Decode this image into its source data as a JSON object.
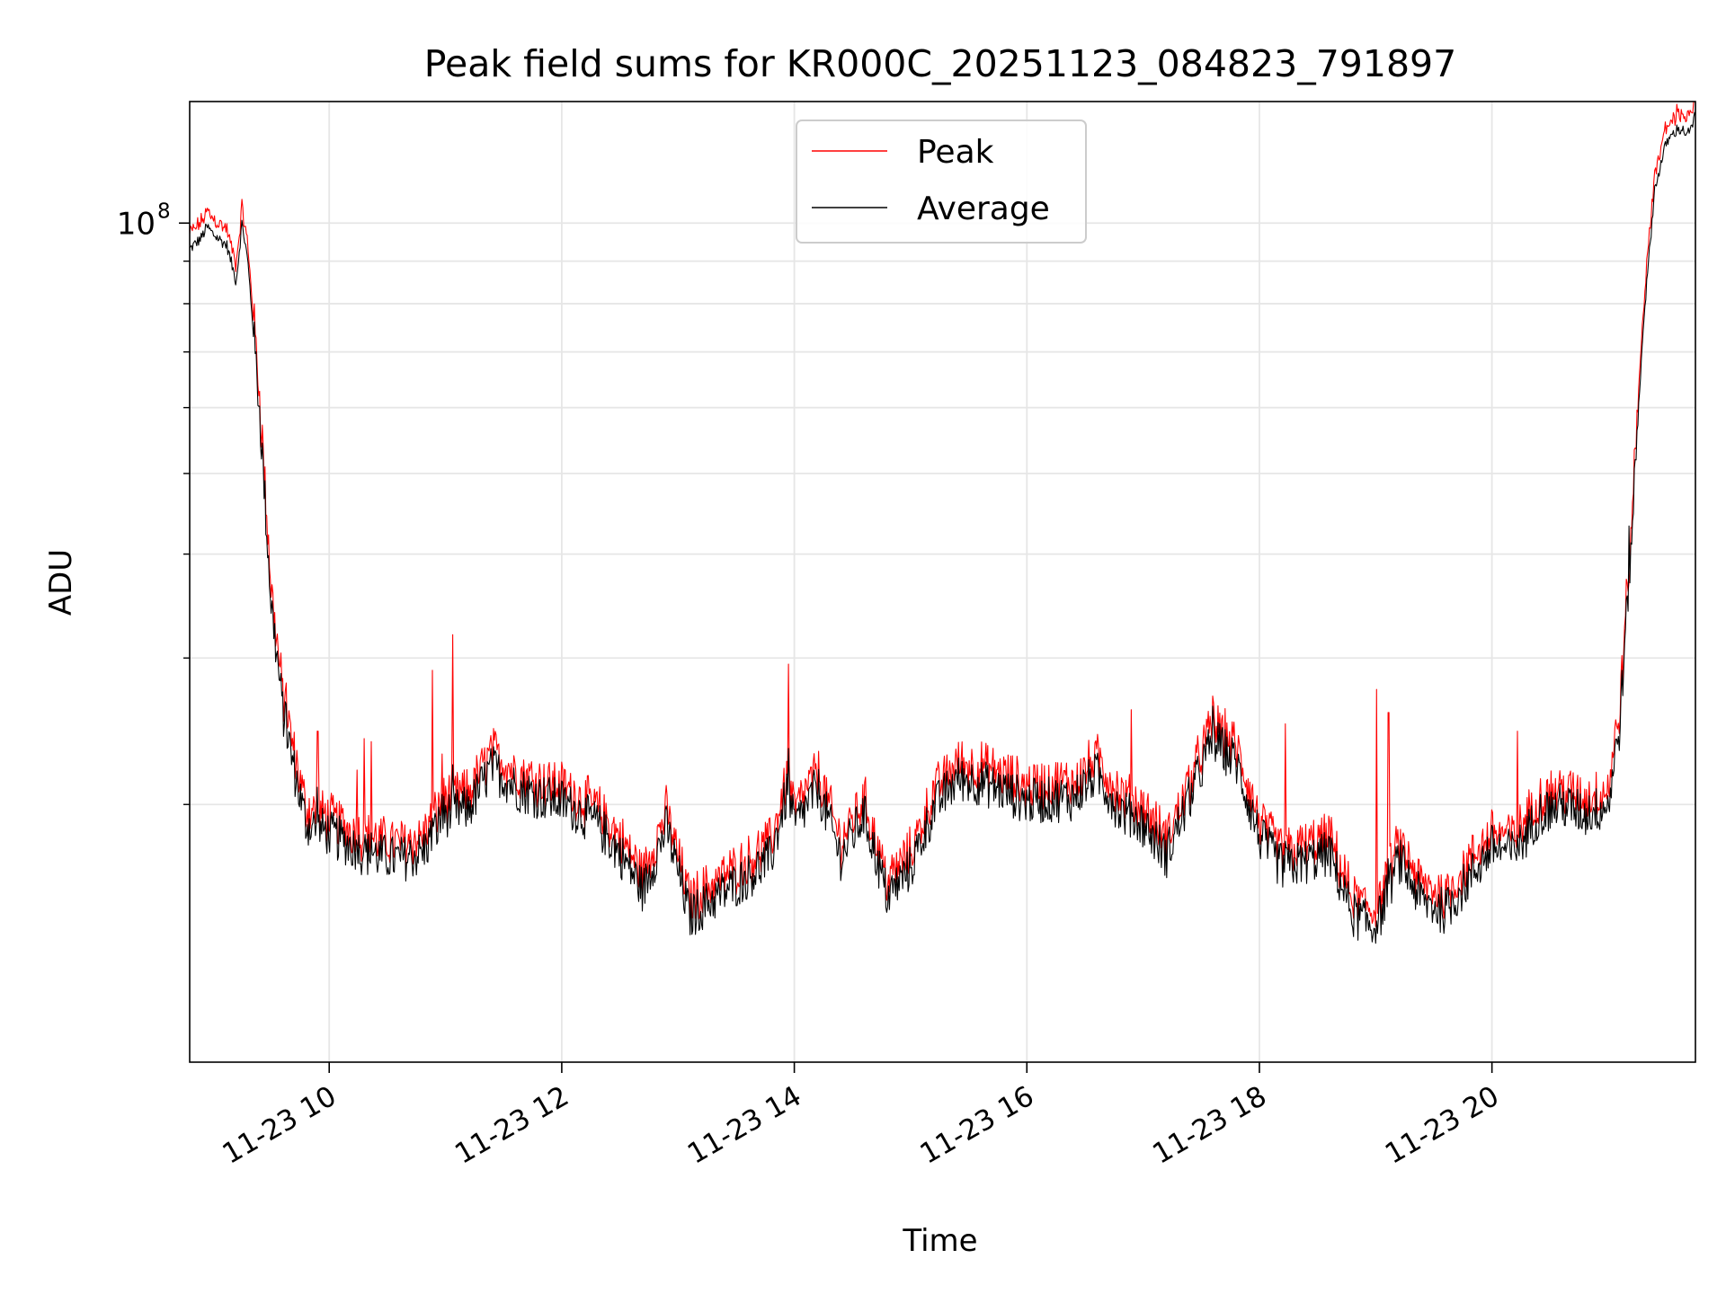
{
  "chart_data": {
    "type": "line",
    "title": "Peak field sums for KR000C_20251123_084823_791897",
    "xlabel": "Time",
    "ylabel": "ADU",
    "yscale": "log",
    "x_range_hours": [
      8.8,
      21.75
    ],
    "y_range": [
      9800000,
      140000000
    ],
    "x_ticks": [
      {
        "value": 10,
        "label": "11-23 10"
      },
      {
        "value": 12,
        "label": "11-23 12"
      },
      {
        "value": 14,
        "label": "11-23 14"
      },
      {
        "value": 16,
        "label": "11-23 16"
      },
      {
        "value": 18,
        "label": "11-23 18"
      },
      {
        "value": 20,
        "label": "11-23 20"
      }
    ],
    "y_major_ticks": [
      {
        "value": 100000000,
        "base": "10",
        "exp": "8"
      }
    ],
    "y_minor_ticks": [
      20000000,
      30000000,
      40000000,
      50000000,
      60000000,
      70000000,
      80000000,
      90000000
    ],
    "grid": true,
    "legend_position": "top-center",
    "series": [
      {
        "name": "Peak",
        "color": "#ff0000"
      },
      {
        "name": "Average",
        "color": "#000000"
      }
    ],
    "baseline_points": [
      [
        8.8,
        93000000
      ],
      [
        8.9,
        96000000
      ],
      [
        8.95,
        99000000
      ],
      [
        9.0,
        97000000
      ],
      [
        9.12,
        94000000
      ],
      [
        9.2,
        85000000
      ],
      [
        9.25,
        100000000
      ],
      [
        9.3,
        90000000
      ],
      [
        9.4,
        60000000
      ],
      [
        9.5,
        35000000
      ],
      [
        9.6,
        26000000
      ],
      [
        9.7,
        22000000
      ],
      [
        9.8,
        19000000
      ],
      [
        10.0,
        18500000
      ],
      [
        10.3,
        17500000
      ],
      [
        10.6,
        17200000
      ],
      [
        10.8,
        17500000
      ],
      [
        11.0,
        19500000
      ],
      [
        11.2,
        19800000
      ],
      [
        11.4,
        22200000
      ],
      [
        11.6,
        21000000
      ],
      [
        11.8,
        20500000
      ],
      [
        12.0,
        20200000
      ],
      [
        12.3,
        19000000
      ],
      [
        12.5,
        17500000
      ],
      [
        12.7,
        15800000
      ],
      [
        12.9,
        18800000
      ],
      [
        13.1,
        14700000
      ],
      [
        13.3,
        15400000
      ],
      [
        13.6,
        16400000
      ],
      [
        13.8,
        17300000
      ],
      [
        13.95,
        21000000
      ],
      [
        14.0,
        18800000
      ],
      [
        14.2,
        21000000
      ],
      [
        14.4,
        17300000
      ],
      [
        14.6,
        19500000
      ],
      [
        14.8,
        15500000
      ],
      [
        15.0,
        16800000
      ],
      [
        15.2,
        19800000
      ],
      [
        15.4,
        21500000
      ],
      [
        15.6,
        21300000
      ],
      [
        15.8,
        20800000
      ],
      [
        16.0,
        20200000
      ],
      [
        16.2,
        20300000
      ],
      [
        16.4,
        20400000
      ],
      [
        16.6,
        21800000
      ],
      [
        16.8,
        19700000
      ],
      [
        17.0,
        19000000
      ],
      [
        17.2,
        17400000
      ],
      [
        17.4,
        20400000
      ],
      [
        17.6,
        24000000
      ],
      [
        17.8,
        22500000
      ],
      [
        18.0,
        18300000
      ],
      [
        18.2,
        16800000
      ],
      [
        18.4,
        17100000
      ],
      [
        18.6,
        17500000
      ],
      [
        18.8,
        14800000
      ],
      [
        19.0,
        14200000
      ],
      [
        19.2,
        17200000
      ],
      [
        19.4,
        15300000
      ],
      [
        19.6,
        14900000
      ],
      [
        19.8,
        16300000
      ],
      [
        20.0,
        17800000
      ],
      [
        20.2,
        17500000
      ],
      [
        20.4,
        19500000
      ],
      [
        20.6,
        20000000
      ],
      [
        20.8,
        19500000
      ],
      [
        21.0,
        20000000
      ],
      [
        21.1,
        25000000
      ],
      [
        21.2,
        42000000
      ],
      [
        21.3,
        75000000
      ],
      [
        21.4,
        110000000
      ],
      [
        21.5,
        125000000
      ],
      [
        21.6,
        130000000
      ],
      [
        21.7,
        128000000
      ],
      [
        21.75,
        135000000
      ]
    ],
    "peak_spikes": [
      [
        9.63,
        28000000
      ],
      [
        9.9,
        24500000
      ],
      [
        10.24,
        22000000
      ],
      [
        10.3,
        24000000
      ],
      [
        10.36,
        23800000
      ],
      [
        10.89,
        29000000
      ],
      [
        10.97,
        23000000
      ],
      [
        11.06,
        32000000
      ],
      [
        13.95,
        29500000
      ],
      [
        16.9,
        26000000
      ],
      [
        17.6,
        27000000
      ],
      [
        18.22,
        25000000
      ],
      [
        19.01,
        27500000
      ],
      [
        19.11,
        25800000
      ],
      [
        20.22,
        24500000
      ],
      [
        21.18,
        37000000
      ]
    ]
  }
}
